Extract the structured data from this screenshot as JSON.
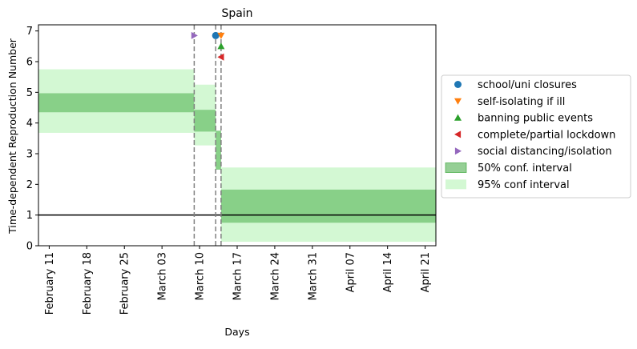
{
  "chart_data": {
    "type": "area",
    "title": "Spain",
    "xlabel": "Days",
    "ylabel": "Time-dependent Reproduction Number",
    "ylim": [
      0,
      7.2
    ],
    "yticks": [
      0,
      1,
      2,
      3,
      4,
      5,
      6,
      7
    ],
    "x_range": [
      "2020-02-09",
      "2020-04-23"
    ],
    "x_tick_dates": [
      "2020-02-11",
      "2020-02-18",
      "2020-02-25",
      "2020-03-03",
      "2020-03-10",
      "2020-03-17",
      "2020-03-24",
      "2020-03-31",
      "2020-04-07",
      "2020-04-14",
      "2020-04-21"
    ],
    "x_tick_labels": [
      "February 11",
      "February 18",
      "February 25",
      "March 03",
      "March 10",
      "March 17",
      "March 24",
      "March 31",
      "April 07",
      "April 14",
      "April 21"
    ],
    "reference_line": 1,
    "segments": [
      {
        "start": "2020-02-09",
        "end": "2020-03-09",
        "ci50": [
          4.35,
          4.97
        ],
        "ci95": [
          3.68,
          5.75
        ]
      },
      {
        "start": "2020-03-09",
        "end": "2020-03-13",
        "ci50": [
          3.72,
          4.43
        ],
        "ci95": [
          3.27,
          5.25
        ]
      },
      {
        "start": "2020-03-13",
        "end": "2020-03-14",
        "ci50": [
          2.48,
          3.75
        ],
        "ci95": [
          2.48,
          3.75
        ]
      },
      {
        "start": "2020-03-14",
        "end": "2020-04-23",
        "ci50": [
          0.75,
          1.83
        ],
        "ci95": [
          0.13,
          2.55
        ]
      }
    ],
    "interventions": [
      {
        "name": "school/uni closures",
        "date": "2020-03-13",
        "y": 6.85,
        "color": "#1f77b4",
        "marker": "circle"
      },
      {
        "name": "self-isolating if ill",
        "date": "2020-03-14",
        "y": 6.85,
        "color": "#ff7f0e",
        "marker": "triangle-down"
      },
      {
        "name": "banning public events",
        "date": "2020-03-14",
        "y": 6.5,
        "color": "#2ca02c",
        "marker": "triangle-up"
      },
      {
        "name": "complete/partial lockdown",
        "date": "2020-03-14",
        "y": 6.15,
        "color": "#d62728",
        "marker": "triangle-left"
      },
      {
        "name": "social distancing/isolation",
        "date": "2020-03-09",
        "y": 6.85,
        "color": "#9467bd",
        "marker": "triangle-right"
      }
    ],
    "vlines": [
      "2020-03-09",
      "2020-03-13",
      "2020-03-14"
    ],
    "legend": {
      "placement": "center-right",
      "entries": [
        {
          "label": "school/uni closures",
          "kind": "circle",
          "color": "#1f77b4"
        },
        {
          "label": "self-isolating if ill",
          "kind": "triangle-down",
          "color": "#ff7f0e"
        },
        {
          "label": "banning public events",
          "kind": "triangle-up",
          "color": "#2ca02c"
        },
        {
          "label": "complete/partial lockdown",
          "kind": "triangle-left",
          "color": "#d62728"
        },
        {
          "label": "social distancing/isolation",
          "kind": "triangle-right",
          "color": "#9467bd"
        },
        {
          "label": "50% conf. interval",
          "kind": "patch",
          "color": "#2ca02c"
        },
        {
          "label": "95% conf interval",
          "kind": "patch",
          "color": "#90ee90"
        }
      ]
    },
    "colors": {
      "ci50": "#2ca02c",
      "ci95": "#90ee90",
      "vline": "#808080",
      "refline": "#000000"
    }
  }
}
